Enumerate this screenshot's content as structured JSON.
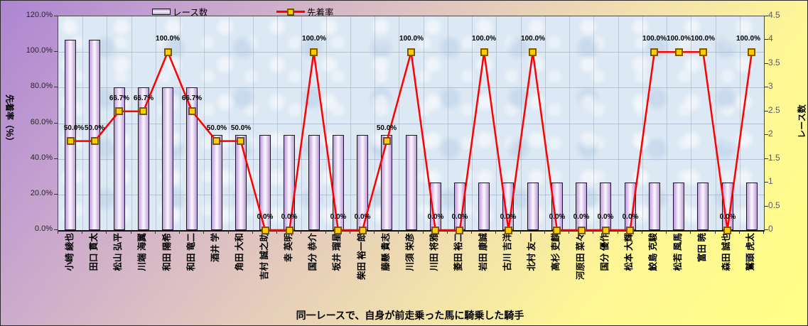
{
  "chart_data": {
    "type": "bar+line combo",
    "x_title": "同一レースで、自身が前走乗った馬に騎乗した騎手",
    "categories": [
      "小崎 綾也",
      "田口 貫太",
      "松山 弘平",
      "川端 海翼",
      "和田 陽希",
      "和田 竜二",
      "酒井 学",
      "角田 大和",
      "吉村 誠之助",
      "幸 英明",
      "国分 恭介",
      "坂井 瑠星",
      "柴田 裕一郎",
      "藤懸 貴志",
      "川須 栄彦",
      "川田 将雅",
      "菱田 裕二",
      "岩田 康誠",
      "古川 吉洋",
      "北村 友一",
      "高杉 吏麒",
      "河原田 菜々",
      "国分 優作",
      "松本 大輝",
      "鮫島 克駿",
      "松若 風馬",
      "富田 暁",
      "森田 誠也",
      "鷲頭 虎太"
    ],
    "series": [
      {
        "name": "レース数",
        "type": "bar",
        "axis": "right",
        "values": [
          4,
          4,
          3,
          3,
          3,
          3,
          2,
          2,
          2,
          2,
          2,
          2,
          2,
          2,
          2,
          1,
          1,
          1,
          1,
          1,
          1,
          1,
          1,
          1,
          1,
          1,
          1,
          1,
          1
        ]
      },
      {
        "name": "先着率",
        "type": "line",
        "axis": "left",
        "values": [
          50,
          50,
          66.7,
          66.7,
          100,
          66.7,
          50,
          50,
          0,
          0,
          100,
          0,
          0,
          50,
          100,
          0,
          0,
          100,
          0,
          100,
          0,
          0,
          0,
          0,
          100,
          100,
          100,
          0,
          100
        ],
        "labels": [
          "50.0%",
          "50.0%",
          "66.7%",
          "66.7%",
          "100.0%",
          "66.7%",
          "50.0%",
          "50.0%",
          "0.0%",
          "0.0%",
          "100.0%",
          "0.0%",
          "0.0%",
          "50.0%",
          "100.0%",
          "0.0%",
          "0.0%",
          "100.0%",
          "0.0%",
          "100.0%",
          "0.0%",
          "0.0%",
          "0.0%",
          "0.0%",
          "100.0%",
          "100.0%",
          "100.0%",
          "0.0%",
          "100.0%"
        ]
      }
    ],
    "left_axis": {
      "title": "先着率（％）",
      "min": 0,
      "max": 120,
      "ticks": [
        "0.0%",
        "20.0%",
        "40.0%",
        "60.0%",
        "80.0%",
        "100.0%",
        "120.0%"
      ]
    },
    "right_axis": {
      "title": "レース数",
      "min": 0,
      "max": 4.5,
      "ticks": [
        "0",
        "0.5",
        "1",
        "1.5",
        "2",
        "2.5",
        "3",
        "3.5",
        "4",
        "4.5"
      ]
    },
    "legend_position": "top",
    "grid": true,
    "colors": {
      "bar_fill_edge": "#bd99de",
      "bar_fill_center": "#faf6fd",
      "bar_border": "#1a1a1a",
      "line": "#ff0000",
      "marker_fill": "#ffcc00",
      "marker_border": "#7a5800",
      "plot_background": "#dce8f4",
      "gridline": "#b2c1d6",
      "background_top": "#ae85d2",
      "background_bottom": "#ffff85"
    }
  }
}
